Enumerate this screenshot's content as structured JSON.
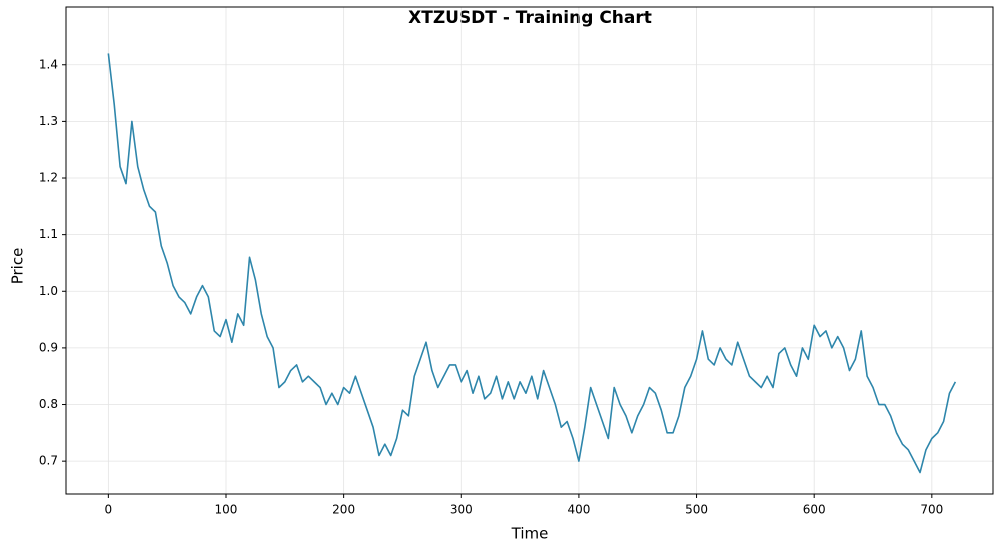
{
  "chart_data": {
    "type": "line",
    "title": "XTZUSDT - Training Chart",
    "x_label": "Time",
    "y_label": "Price",
    "x": [
      0,
      5,
      10,
      15,
      20,
      25,
      30,
      35,
      40,
      45,
      50,
      55,
      60,
      65,
      70,
      75,
      80,
      85,
      90,
      95,
      100,
      105,
      110,
      115,
      120,
      125,
      130,
      135,
      140,
      145,
      150,
      155,
      160,
      165,
      170,
      175,
      180,
      185,
      190,
      195,
      200,
      205,
      210,
      215,
      220,
      225,
      230,
      235,
      240,
      245,
      250,
      255,
      260,
      265,
      270,
      275,
      280,
      285,
      290,
      295,
      300,
      305,
      310,
      315,
      320,
      325,
      330,
      335,
      340,
      345,
      350,
      355,
      360,
      365,
      370,
      375,
      380,
      385,
      390,
      395,
      400,
      405,
      410,
      415,
      420,
      425,
      430,
      435,
      440,
      445,
      450,
      455,
      460,
      465,
      470,
      475,
      480,
      485,
      490,
      495,
      500,
      505,
      510,
      515,
      520,
      525,
      530,
      535,
      540,
      545,
      550,
      555,
      560,
      565,
      570,
      575,
      580,
      585,
      590,
      595,
      600,
      605,
      610,
      615,
      620,
      625,
      630,
      635,
      640,
      645,
      650,
      655,
      660,
      665,
      670,
      675,
      680,
      685,
      690,
      695,
      700,
      705,
      710,
      715,
      720
    ],
    "series": [
      {
        "name": "XTZUSDT",
        "color": "#2e86ab",
        "values": [
          1.42,
          1.33,
          1.22,
          1.19,
          1.3,
          1.22,
          1.18,
          1.15,
          1.14,
          1.08,
          1.05,
          1.01,
          0.99,
          0.98,
          0.96,
          0.99,
          1.01,
          0.99,
          0.93,
          0.92,
          0.95,
          0.91,
          0.96,
          0.94,
          1.06,
          1.02,
          0.96,
          0.92,
          0.9,
          0.83,
          0.84,
          0.86,
          0.87,
          0.84,
          0.85,
          0.84,
          0.83,
          0.8,
          0.82,
          0.8,
          0.83,
          0.82,
          0.85,
          0.82,
          0.79,
          0.76,
          0.71,
          0.73,
          0.71,
          0.74,
          0.79,
          0.78,
          0.85,
          0.88,
          0.91,
          0.86,
          0.83,
          0.85,
          0.87,
          0.87,
          0.84,
          0.86,
          0.82,
          0.85,
          0.81,
          0.82,
          0.85,
          0.81,
          0.84,
          0.81,
          0.84,
          0.82,
          0.85,
          0.81,
          0.86,
          0.83,
          0.8,
          0.76,
          0.77,
          0.74,
          0.7,
          0.76,
          0.83,
          0.8,
          0.77,
          0.74,
          0.83,
          0.8,
          0.78,
          0.75,
          0.78,
          0.8,
          0.83,
          0.82,
          0.79,
          0.75,
          0.75,
          0.78,
          0.83,
          0.85,
          0.88,
          0.93,
          0.88,
          0.87,
          0.9,
          0.88,
          0.87,
          0.91,
          0.88,
          0.85,
          0.84,
          0.83,
          0.85,
          0.83,
          0.89,
          0.9,
          0.87,
          0.85,
          0.9,
          0.88,
          0.94,
          0.92,
          0.93,
          0.9,
          0.92,
          0.9,
          0.86,
          0.88,
          0.93,
          0.85,
          0.83,
          0.8,
          0.8,
          0.78,
          0.75,
          0.73,
          0.72,
          0.7,
          0.68,
          0.72,
          0.74,
          0.75,
          0.77,
          0.82,
          0.84
        ]
      }
    ],
    "xlim": [
      -36,
      752
    ],
    "ylim": [
      0.642,
      1.502
    ],
    "xticks": [
      0,
      100,
      200,
      300,
      400,
      500,
      600,
      700
    ],
    "yticks": [
      0.7,
      0.8,
      0.9,
      {
        "value": 1,
        "label": "1.0"
      },
      1.1,
      1.2,
      1.3,
      1.4
    ],
    "grid": true
  }
}
